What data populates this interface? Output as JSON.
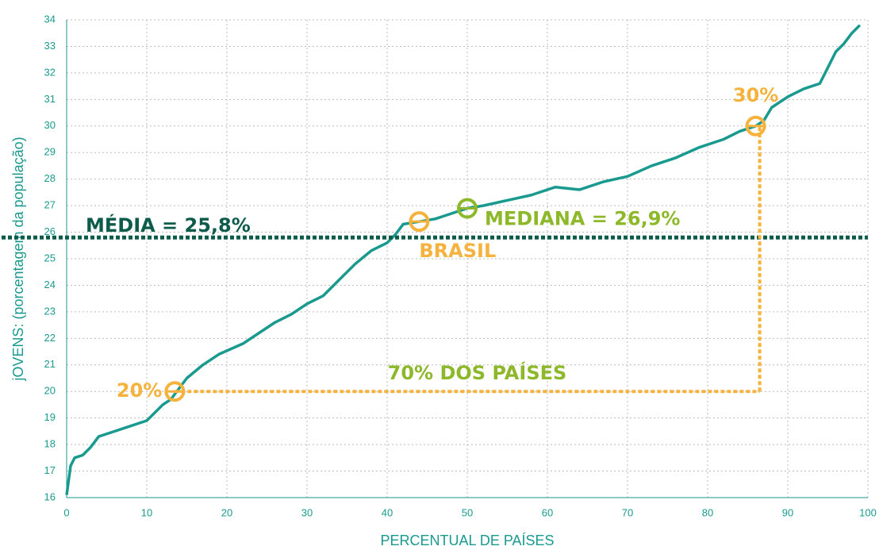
{
  "chart_data": {
    "type": "line",
    "x_label": "PERCENTUAL DE PAÍSES",
    "y_label": "jOVENS: (porcentagem da população)",
    "x": [
      0,
      0.5,
      1,
      2,
      3,
      4,
      6,
      8,
      10,
      11,
      12,
      13,
      14,
      15,
      17,
      19,
      22,
      24,
      26,
      28,
      30,
      32,
      34,
      36,
      38,
      40,
      41,
      42,
      44,
      46,
      48,
      50,
      52,
      55,
      58,
      61,
      64,
      67,
      70,
      73,
      76,
      79,
      82,
      84,
      86,
      87,
      88,
      90,
      92,
      94,
      95,
      96,
      97,
      98,
      99
    ],
    "series": [
      {
        "name": "jOVENS",
        "color": "#1a9a8f",
        "values": [
          16.1,
          17.2,
          17.5,
          17.6,
          17.9,
          18.3,
          18.5,
          18.7,
          18.9,
          19.2,
          19.5,
          19.7,
          20.1,
          20.5,
          21.0,
          21.4,
          21.8,
          22.2,
          22.6,
          22.9,
          23.3,
          23.6,
          24.2,
          24.8,
          25.3,
          25.6,
          25.9,
          26.3,
          26.4,
          26.5,
          26.7,
          26.9,
          27.0,
          27.2,
          27.4,
          27.7,
          27.6,
          27.9,
          28.1,
          28.5,
          28.8,
          29.2,
          29.5,
          29.8,
          30.0,
          30.2,
          30.7,
          31.1,
          31.4,
          31.6,
          32.2,
          32.8,
          33.1,
          33.5,
          33.8
        ]
      }
    ],
    "xlim": [
      0,
      100
    ],
    "xticks": [
      0,
      10,
      20,
      30,
      40,
      50,
      60,
      70,
      80,
      90,
      100
    ],
    "ylim": [
      16,
      34
    ],
    "yticks": [
      16,
      17,
      18,
      19,
      20,
      21,
      22,
      23,
      24,
      25,
      26,
      27,
      28,
      29,
      30,
      31,
      32,
      33,
      34
    ],
    "grid": true,
    "mean": {
      "label": "MÉDIA = 25,8%",
      "value": 25.8,
      "color": "#0d5b4a"
    },
    "median": {
      "label": "MEDIANA = 26,9%",
      "x": 50,
      "value": 26.9,
      "color": "#8db82a"
    },
    "brazil": {
      "label": "BRASIL",
      "x": 44,
      "value": 26.4,
      "color": "#f5b23c"
    },
    "range": {
      "label": "70% DOS PAÍSES",
      "color": "#f5b23c",
      "label_color": "#8db82a",
      "low": {
        "label": "20%",
        "x": 13.5,
        "value": 20
      },
      "high": {
        "label": "30%",
        "x": 86,
        "value": 30
      }
    }
  }
}
